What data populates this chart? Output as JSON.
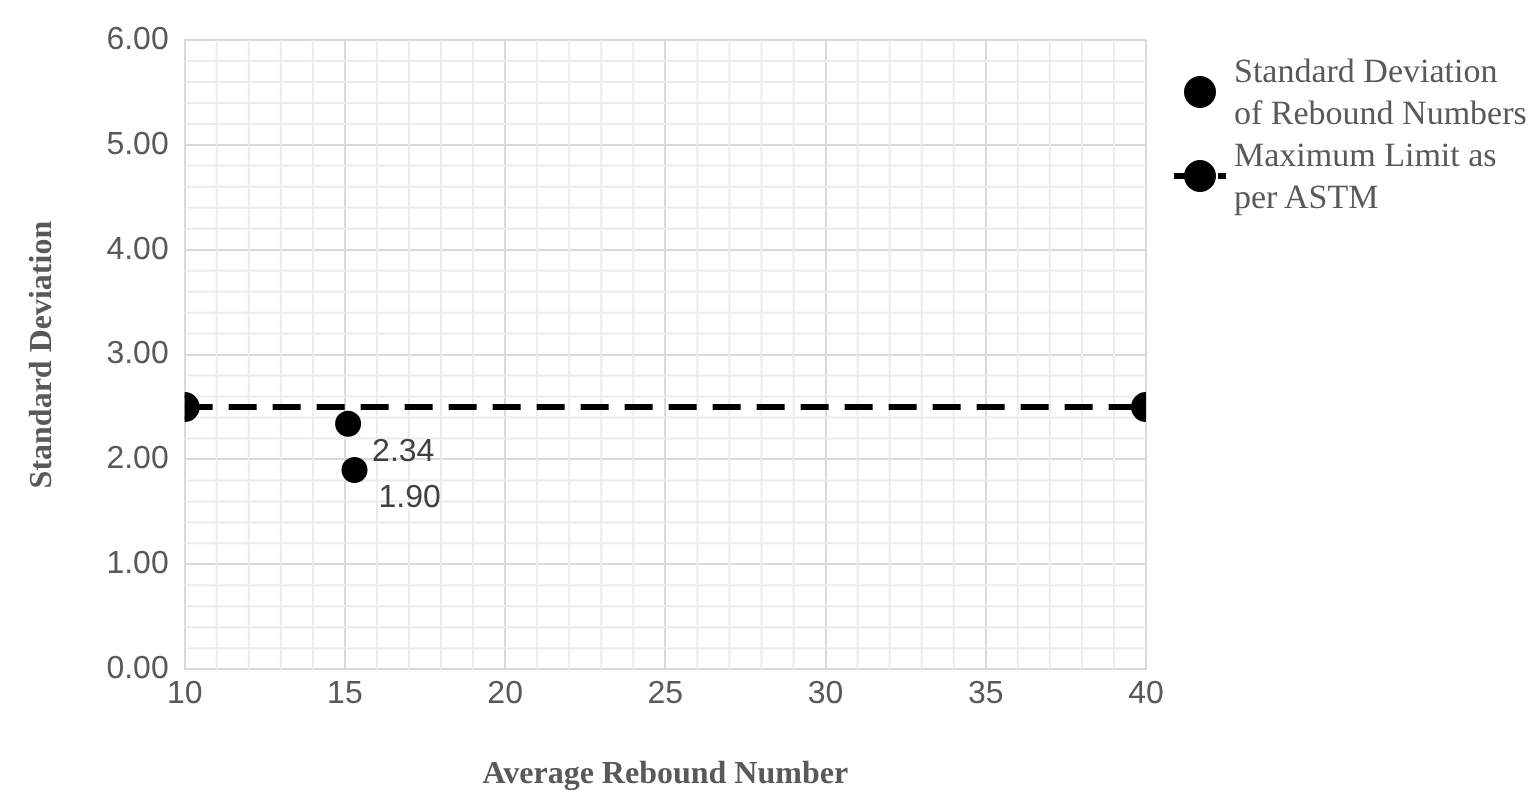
{
  "chart_data": {
    "type": "scatter",
    "xlabel": "Average Rebound Number",
    "ylabel": "Standard Deviation",
    "xlim": [
      10,
      40
    ],
    "xticks": [
      10,
      15,
      20,
      25,
      30,
      35,
      40
    ],
    "ylim": [
      0,
      6
    ],
    "yticks": [
      {
        "value": 0,
        "label": "0.00"
      },
      {
        "value": 1,
        "label": "1.00"
      },
      {
        "value": 2,
        "label": "2.00"
      },
      {
        "value": 3,
        "label": "3.00"
      },
      {
        "value": 4,
        "label": "4.00"
      },
      {
        "value": 5,
        "label": "5.00"
      },
      {
        "value": 6,
        "label": "6.00"
      }
    ],
    "grid": true,
    "legend": "right",
    "marker": "circle",
    "series": [
      {
        "name": "Standard Deviation of Rebound Numbers",
        "color": "#000000",
        "x": [
          15.1,
          15.3
        ],
        "values": [
          2.34,
          1.9
        ],
        "value_labels": [
          "2.34",
          "1.90"
        ]
      },
      {
        "name": "Maximum Limit as per ASTM",
        "type": "line",
        "line_style": "dashed",
        "color": "#000000",
        "x": [
          10,
          40
        ],
        "values": [
          2.5,
          2.5
        ]
      }
    ]
  }
}
